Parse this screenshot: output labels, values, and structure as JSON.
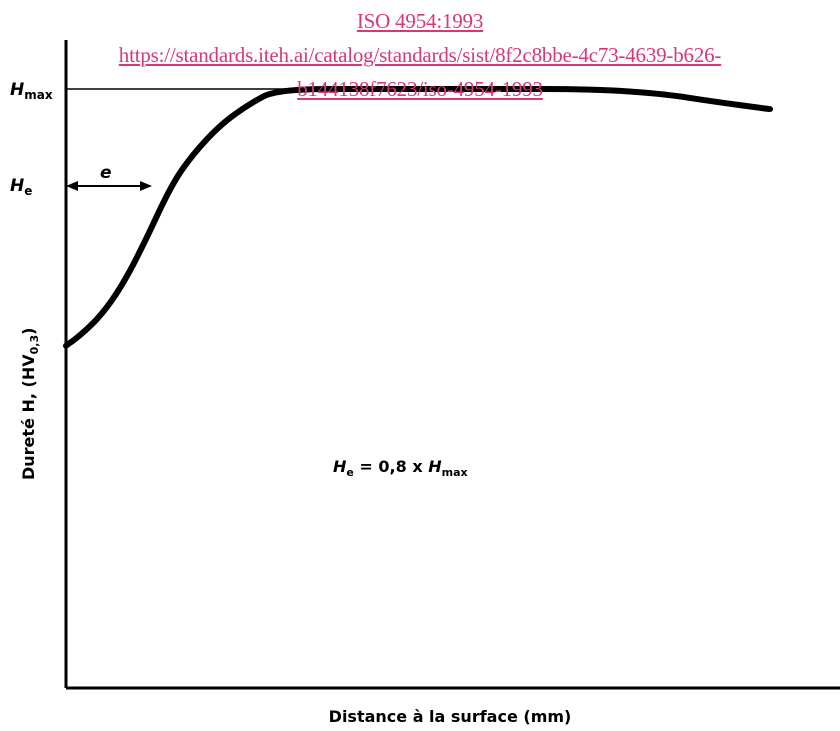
{
  "watermark": {
    "line1": "ISO 4954:1993",
    "line2": "https://standards.iteh.ai/catalog/standards/sist/8f2c8bbe-4c73-4639-b626-",
    "line3": "b144138f7623/iso-4954-1993",
    "color": "#d9377a"
  },
  "chart_data": {
    "type": "line",
    "title": "",
    "xlabel": "Distance à la surface (mm)",
    "ylabel_main": "Dureté H, (HV",
    "ylabel_sub": "0,3",
    "ylabel_close": ")",
    "y_marks": [
      {
        "id": "hmax",
        "base": "H",
        "sub": "max"
      },
      {
        "id": "he",
        "base": "H",
        "sub": "e"
      }
    ],
    "annotations": {
      "e_label": "e",
      "formula_left_base": "H",
      "formula_left_sub": "e",
      "formula_mid": " = 0,8 x ",
      "formula_right_base": "H",
      "formula_right_sub": "max"
    },
    "axes_numeric_values_shown": false,
    "grid": false,
    "series": [
      {
        "values_note": "qualitative hardness-depth curve, no numeric ticks",
        "x": [
          0,
          0.02,
          0.05,
          0.08,
          0.11,
          0.15,
          0.18,
          0.22,
          0.26,
          0.3,
          0.45,
          0.6,
          0.75,
          0.85,
          0.92,
          1.0
        ],
        "y": [
          0.68,
          0.7,
          0.74,
          0.8,
          0.88,
          1.0,
          1.06,
          1.12,
          1.16,
          1.19,
          1.19,
          1.19,
          1.19,
          1.18,
          1.165,
          1.15
        ]
      }
    ],
    "line_color": "#000000"
  }
}
